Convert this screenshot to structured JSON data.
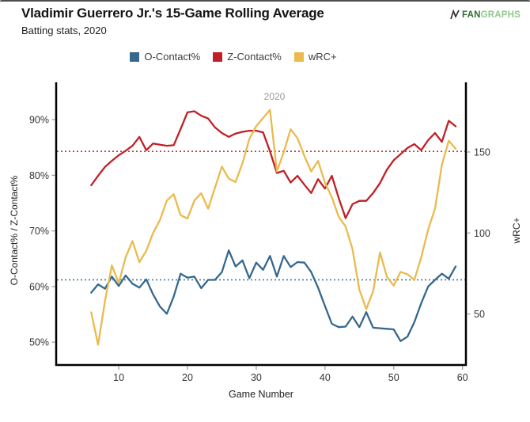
{
  "header": {
    "title": "Vladimir Guerrero Jr.'s 15-Game Rolling Average",
    "subtitle": "Batting stats, 2020"
  },
  "logo": {
    "fan": "FAN",
    "graphs": "GRAPHS"
  },
  "legend": [
    {
      "label": "O-Contact%",
      "color": "#35688e"
    },
    {
      "label": "Z-Contact%",
      "color": "#bf2026"
    },
    {
      "label": "wRC+",
      "color": "#eaba4e"
    }
  ],
  "chart_data": {
    "type": "line",
    "title": "Vladimir Guerrero Jr.'s 15-Game Rolling Average",
    "subtitle": "Batting stats, 2020",
    "annotation": "2020",
    "xlabel": "Game Number",
    "start_game": 6,
    "x_range": [
      0.9,
      60.5
    ],
    "x_ticks": [
      {
        "value": 10,
        "label": "10"
      },
      {
        "value": 20,
        "label": "20"
      },
      {
        "value": 30,
        "label": "30"
      },
      {
        "value": 40,
        "label": "40"
      },
      {
        "value": 50,
        "label": "50"
      },
      {
        "value": 60,
        "label": "60"
      }
    ],
    "left_axis": {
      "label": "O-Contact% / Z-Contact%",
      "range": [
        45.9,
        96.7
      ],
      "ticks": [
        {
          "value": 50,
          "label": "50%"
        },
        {
          "value": 60,
          "label": "60%"
        },
        {
          "value": 70,
          "label": "70%"
        },
        {
          "value": 80,
          "label": "80%"
        },
        {
          "value": 90,
          "label": "90%"
        }
      ]
    },
    "right_axis": {
      "label": "wRC+",
      "range": [
        18.5,
        193
      ],
      "ticks": [
        {
          "value": 50,
          "label": "50"
        },
        {
          "value": 100,
          "label": "100"
        },
        {
          "value": 150,
          "label": "150"
        }
      ]
    },
    "series": [
      {
        "name": "O-Contact%",
        "axis": "left",
        "color": "#35688e",
        "avg_line": 61.2,
        "values": [
          58.9,
          60.4,
          59.6,
          61.8,
          60.1,
          62,
          60.5,
          59.8,
          61.3,
          58.6,
          56.4,
          55.1,
          58.2,
          62.3,
          61.6,
          61.8,
          59.7,
          61.2,
          61.2,
          62.6,
          66.5,
          63.6,
          64.7,
          61.5,
          64.3,
          63,
          65.5,
          61.8,
          65.5,
          63.5,
          64.4,
          64.3,
          62.6,
          59.8,
          56.5,
          53.3,
          52.7,
          52.8,
          54.6,
          52.7,
          55.4,
          52.6,
          52.5,
          52.4,
          52.3,
          50.2,
          51,
          53.6,
          57,
          60,
          61.2,
          62.3,
          61.4,
          63.6
        ]
      },
      {
        "name": "Z-Contact%",
        "axis": "left",
        "color": "#bf2026",
        "avg_line": 84.3,
        "values": [
          78.2,
          79.9,
          81.5,
          82.6,
          83.6,
          84.4,
          85.3,
          86.9,
          84.5,
          85.7,
          85.5,
          85.3,
          85.4,
          88.3,
          91.3,
          91.5,
          90.7,
          90.2,
          88.6,
          87.6,
          86.9,
          87.5,
          87.8,
          88,
          88,
          87.7,
          84.3,
          80.4,
          80.8,
          78.7,
          79.9,
          78.3,
          76.8,
          79.3,
          77.6,
          79.9,
          75.9,
          72.3,
          74.8,
          75.4,
          75.4,
          76.8,
          78.6,
          81,
          82.7,
          83.8,
          84.9,
          85.6,
          84.5,
          86.3,
          87.6,
          86,
          89.8,
          88.8
        ]
      },
      {
        "name": "wRC+",
        "axis": "right",
        "color": "#eaba4e",
        "avg_line": null,
        "values": [
          51,
          31,
          58,
          80,
          69,
          85,
          95,
          82,
          89,
          100,
          108,
          120,
          124,
          111,
          109,
          120,
          124.5,
          115,
          128,
          141,
          133.5,
          131.5,
          143,
          158,
          166,
          171,
          176,
          138,
          150,
          164,
          158.5,
          147.5,
          138,
          144.5,
          131,
          122,
          110,
          104,
          90,
          65,
          53,
          64,
          88,
          73,
          67.5,
          76,
          74.5,
          71,
          85,
          102,
          115,
          142,
          157,
          152
        ]
      }
    ]
  }
}
